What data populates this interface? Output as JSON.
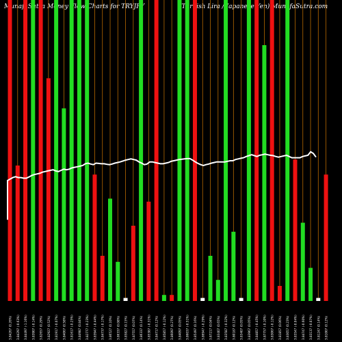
{
  "chart_data": {
    "type": "bar",
    "title_left": "MunafaSutra  Money Flow  Charts for TRYJPY",
    "title_right": "(Turkish Lira  / Japanese  Yen)  MunafaSutra.com",
    "bar_up_color": "#22dd22",
    "bar_down_color": "#ee1111",
    "grid_color": "#b86a00",
    "line_color": "#ffffff",
    "grid": true,
    "ylim": [
      0,
      100
    ],
    "bars": [
      {
        "label": "3.84267 (0.26%)",
        "color": "red",
        "value": 100
      },
      {
        "label": "3.84297 (-0.63%)",
        "color": "red",
        "value": 45
      },
      {
        "label": "3.84497 (-1.16%)",
        "color": "red",
        "value": 100
      },
      {
        "label": "3.83907 (-0.14%)",
        "color": "green",
        "value": 100
      },
      {
        "label": "3.82657 (0.29%)",
        "color": "red",
        "value": 100
      },
      {
        "label": "3.82927 (0.52%)",
        "color": "red",
        "value": 74
      },
      {
        "label": "3.81917 (-0.07%)",
        "color": "green",
        "value": 100
      },
      {
        "label": "3.84067 (0.58%)",
        "color": "green",
        "value": 64
      },
      {
        "label": "3.81617 (-0.25%)",
        "color": "green",
        "value": 100
      },
      {
        "label": "3.84987 (0.84%)",
        "color": "green",
        "value": 100
      },
      {
        "label": "3.82777 (-0.23%)",
        "color": "green",
        "value": 100
      },
      {
        "label": "3.83947 (-0.44%)",
        "color": "red",
        "value": 42
      },
      {
        "label": "3.84737 (-0.17%)",
        "color": "red",
        "value": 15
      },
      {
        "label": "3.86527 (0.10%)",
        "color": "green",
        "value": 34
      },
      {
        "label": "3.86337 (0.08%)",
        "color": "green",
        "value": 13
      },
      {
        "label": "3.85827 (0.15%)",
        "color": "white",
        "value": 1
      },
      {
        "label": "3.87557 (0.07%)",
        "color": "red",
        "value": 25
      },
      {
        "label": "3.86337 (0.14%)",
        "color": "green",
        "value": 100
      },
      {
        "label": "3.85387 (-0.31%)",
        "color": "red",
        "value": 33
      },
      {
        "label": "3.84717 (0.12%)",
        "color": "red",
        "value": 100
      },
      {
        "label": "3.85857 (-0.12%)",
        "color": "green",
        "value": 2
      },
      {
        "label": "3.86097 (0.27%)",
        "color": "red",
        "value": 2
      },
      {
        "label": "3.84097 (0.05%)",
        "color": "green",
        "value": 100
      },
      {
        "label": "3.86037 (-0.51%)",
        "color": "green",
        "value": 100
      },
      {
        "label": "3.85497 (0.16%)",
        "color": "red",
        "value": 100
      },
      {
        "label": "3.86947 (-0.29%)",
        "color": "white",
        "value": 1
      },
      {
        "label": "3.87217 (0.04%)",
        "color": "green",
        "value": 15
      },
      {
        "label": "3.83407 (0.65%)",
        "color": "green",
        "value": 7
      },
      {
        "label": "3.83587 (-0.32%)",
        "color": "green",
        "value": 100
      },
      {
        "label": "3.80187 (0.12%)",
        "color": "green",
        "value": 23
      },
      {
        "label": "3.83407 (0.05%)",
        "color": "white",
        "value": 1
      },
      {
        "label": "3.83967 (0.05%)",
        "color": "green",
        "value": 100
      },
      {
        "label": "3.84857 (-0.45%)",
        "color": "red",
        "value": 100
      },
      {
        "label": "3.87757 (-0.10%)",
        "color": "green",
        "value": 85
      },
      {
        "label": "3.83067 (-0.12%)",
        "color": "red",
        "value": 100
      },
      {
        "label": "3.81857 (0.06%)",
        "color": "red",
        "value": 5
      },
      {
        "label": "3.83057 (0.23%)",
        "color": "green",
        "value": 100
      },
      {
        "label": "3.83547 (-0.04%)",
        "color": "red",
        "value": 47
      },
      {
        "label": "3.84747 (-0.60%)",
        "color": "green",
        "value": 26
      },
      {
        "label": "3.83137 (-0.07%)",
        "color": "green",
        "value": 11
      },
      {
        "label": "3.81247 (0.14%)",
        "color": "white",
        "value": 1
      },
      {
        "label": "3.81007 (0.12%)",
        "color": "red",
        "value": 42
      }
    ],
    "line_values": [
      40,
      40.5,
      41,
      41.3,
      41,
      41,
      40.8,
      40.8,
      41.2,
      41.7,
      42,
      42.2,
      42.4,
      42.8,
      43,
      43.2,
      43.4,
      43.6,
      43.2,
      43,
      43.4,
      43.8,
      43.6,
      43.8,
      44.2,
      44.4,
      44.6,
      44.8,
      45,
      45.6,
      45.8,
      45.5,
      45.3,
      45.8,
      45.7,
      45.6,
      45.6,
      45.4,
      45.3,
      45.5,
      45.8,
      46,
      46.2,
      46.5,
      46.8,
      47,
      47.2,
      47,
      46.8,
      46.2,
      45.8,
      45.3,
      45.5,
      46.2,
      46.2,
      46,
      45.8,
      45.6,
      45.6,
      45.8,
      46,
      46.4,
      46.6,
      46.8,
      47,
      47.1,
      47.2,
      47.3,
      47.3,
      46.8,
      46.2,
      45.7,
      45.3,
      45,
      45.3,
      45.5,
      45.8,
      46,
      46.2,
      46.2,
      46.2,
      46.2,
      46.4,
      46.6,
      46.6,
      47,
      47.2,
      47.4,
      47.6,
      48,
      48.3,
      48.6,
      48.3,
      48,
      48.4,
      48.6,
      48.8,
      48.6,
      48.4,
      48.3,
      48,
      47.8,
      48,
      48.2,
      48.4,
      48,
      47.6,
      47.6,
      47.6,
      47.6,
      48,
      48.2,
      48.4,
      49.6,
      49,
      47.8
    ],
    "line_start": 27
  }
}
